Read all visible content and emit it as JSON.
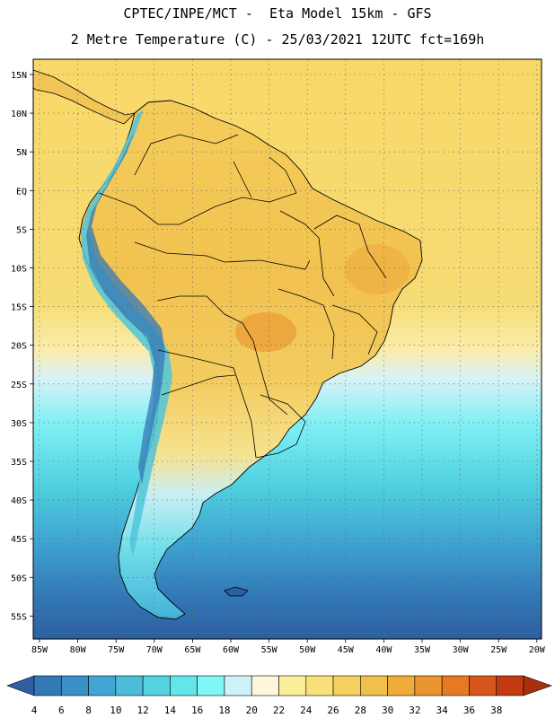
{
  "header": {
    "line1": "CPTEC/INPE/MCT -  Eta Model 15km - GFS",
    "line2": "2 Metre Temperature (C) - 25/03/2021 12UTC fct=169h"
  },
  "map": {
    "variable": "2 Metre Temperature",
    "units": "C",
    "lat_labels": [
      "15N",
      "10N",
      "5N",
      "EQ",
      "5S",
      "10S",
      "15S",
      "20S",
      "25S",
      "30S",
      "35S",
      "40S",
      "45S",
      "50S",
      "55S"
    ],
    "lon_labels": [
      "85W",
      "80W",
      "75W",
      "70W",
      "65W",
      "60W",
      "55W",
      "50W",
      "45W",
      "40W",
      "35W",
      "30W",
      "25W",
      "20W"
    ]
  },
  "legend": {
    "ticks": [
      "4",
      "6",
      "8",
      "10",
      "12",
      "14",
      "16",
      "18",
      "20",
      "22",
      "24",
      "26",
      "28",
      "30",
      "32",
      "34",
      "36",
      "38"
    ],
    "colors": [
      "#2e5fa3",
      "#3478b6",
      "#3a8fc6",
      "#42a5d4",
      "#4cbcd9",
      "#54d2df",
      "#63e6ea",
      "#7ff7f5",
      "#cdf2f9",
      "#fdf6dc",
      "#fbf09a",
      "#f8e07a",
      "#f4d05e",
      "#f0c04c",
      "#eeac3a",
      "#eb9530",
      "#e67a24",
      "#d8561c",
      "#c23a12",
      "#a8300e"
    ]
  }
}
